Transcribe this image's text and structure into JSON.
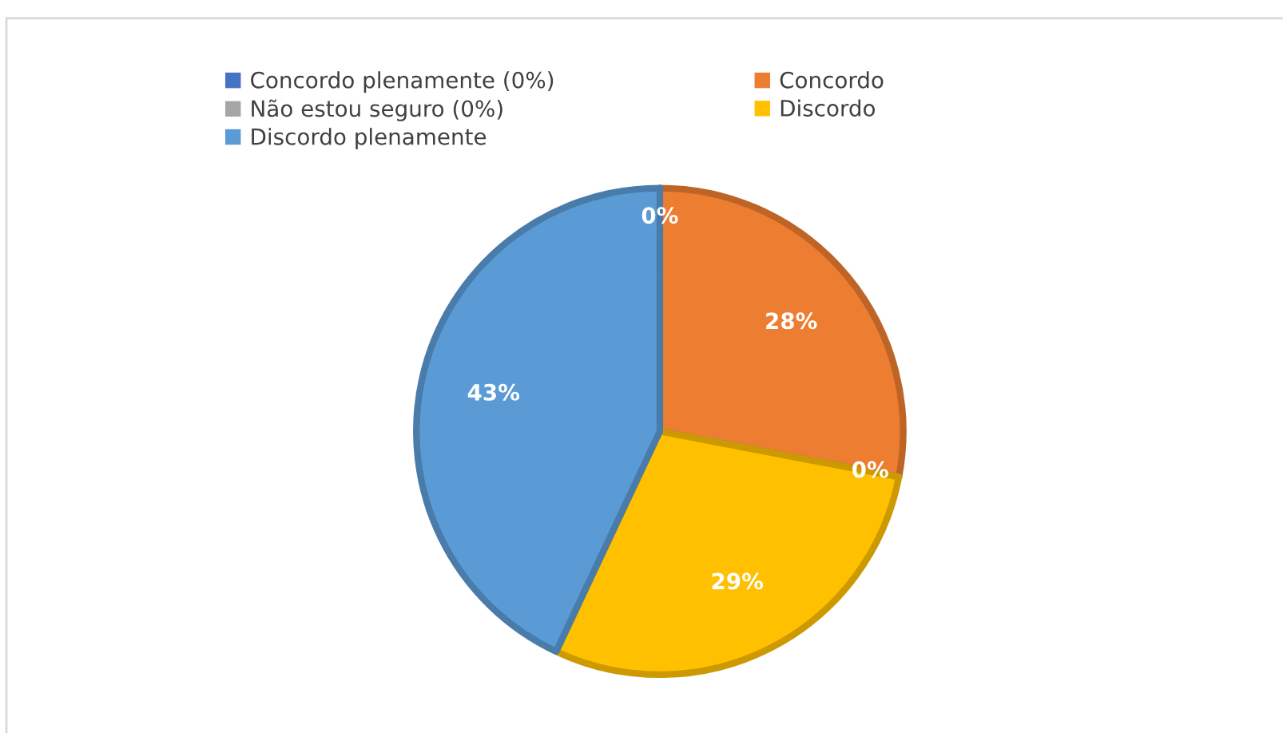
{
  "chart_data": {
    "type": "pie",
    "categories": [
      "Concordo plenamente (0%)",
      "Concordo",
      "Não estou seguro (0%)",
      "Discordo",
      "Discordo plenamente"
    ],
    "values": [
      0,
      28,
      0,
      29,
      43
    ],
    "colors": [
      "#4472c4",
      "#ed7d31",
      "#a5a5a5",
      "#ffc000",
      "#5b9bd5"
    ],
    "value_labels": [
      "0%",
      "28%",
      "0%",
      "29%",
      "43%"
    ],
    "legend": "top left"
  }
}
